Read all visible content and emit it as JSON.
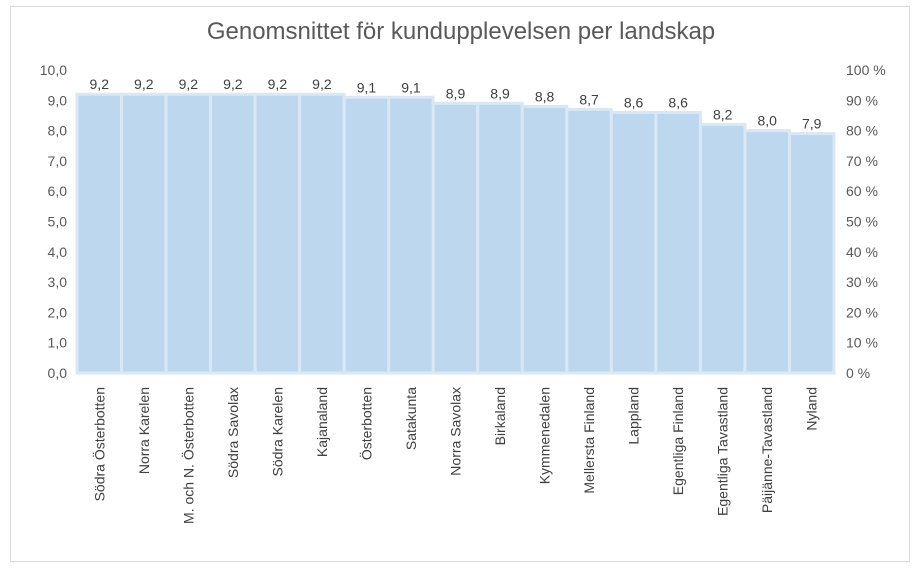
{
  "chart_data": {
    "type": "bar",
    "title": "Genomsnittet för kundupplevelsen per landskap",
    "categories": [
      "Södra Österbotten",
      "Norra Karelen",
      "M. och N. Österbotten",
      "Södra Savolax",
      "Södra Karelen",
      "Kajanaland",
      "Österbotten",
      "Satakunta",
      "Norra Savolax",
      "Birkaland",
      "Kymmenedalen",
      "Mellersta Finland",
      "Lappland",
      "Egentliga Finland",
      "Egentliga Tavastland",
      "Päijänne-Tavastland",
      "Nyland"
    ],
    "values": [
      9.2,
      9.2,
      9.2,
      9.2,
      9.2,
      9.2,
      9.1,
      9.1,
      8.9,
      8.9,
      8.8,
      8.7,
      8.6,
      8.6,
      8.2,
      8.0,
      7.9
    ],
    "data_labels": [
      "9,2",
      "9,2",
      "9,2",
      "9,2",
      "9,2",
      "9,2",
      "9,1",
      "9,1",
      "8,9",
      "8,9",
      "8,8",
      "8,7",
      "8,6",
      "8,6",
      "8,2",
      "8,0",
      "7,9"
    ],
    "ylim": [
      0,
      10
    ],
    "y_ticks": [
      "0,0",
      "1,0",
      "2,0",
      "3,0",
      "4,0",
      "5,0",
      "6,0",
      "7,0",
      "8,0",
      "9,0",
      "10,0"
    ],
    "y2lim": [
      0,
      100
    ],
    "y2_ticks": [
      "0 %",
      "10 %",
      "20 %",
      "30 %",
      "40 %",
      "50 %",
      "60 %",
      "70 %",
      "80 %",
      "90 %",
      "100 %"
    ],
    "bar_color": "#bdd7ee",
    "bar_border_color": "#dae8f5",
    "legend": "none",
    "grid": false
  }
}
